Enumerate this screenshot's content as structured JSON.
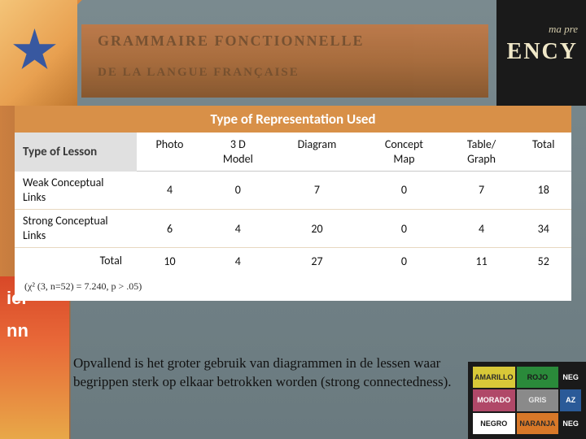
{
  "bg": {
    "topband_line1": "GRAMMAIRE FONCTIONNELLE",
    "topband_line2": "DE LA LANGUE FRANÇAISE",
    "right_small": "ma pre",
    "right_large": "ENCY",
    "ll_line1": "ier",
    "ll_line2": "nn",
    "colors": [
      {
        "label": "AMARILLO",
        "bg": "#d8c838",
        "fg": "#2a2a2a"
      },
      {
        "label": "ROJO",
        "bg": "#2a8a3a",
        "fg": "#1a1a1a"
      },
      {
        "label": "NEG",
        "bg": "#1a1a1a",
        "fg": "#ffffff"
      },
      {
        "label": "MORADO",
        "bg": "#b04868",
        "fg": "#ffffff"
      },
      {
        "label": "GRIS",
        "bg": "#8a8a8a",
        "fg": "#e8e8e8"
      },
      {
        "label": "AZ",
        "bg": "#2a5a98",
        "fg": "#ffffff"
      },
      {
        "label": "NEGRO",
        "bg": "#ffffff",
        "fg": "#1a1a1a"
      },
      {
        "label": "NARANJA",
        "bg": "#d87828",
        "fg": "#2a2a2a"
      },
      {
        "label": "NEG",
        "bg": "#1a1a1a",
        "fg": "#ffffff"
      }
    ]
  },
  "table": {
    "superheader": "Type of Representation Used",
    "rowheader": "Type of Lesson",
    "columns": [
      "Photo",
      "3 D\nModel",
      "Diagram",
      "Concept\nMap",
      "Table/\nGraph",
      "Total"
    ],
    "rows": [
      {
        "label": "Weak Conceptual Links",
        "cells": [
          4,
          0,
          7,
          0,
          7,
          18
        ]
      },
      {
        "label": "Strong Conceptual Links",
        "cells": [
          6,
          4,
          20,
          0,
          4,
          34
        ]
      }
    ],
    "total_label": "Total",
    "total_cells": [
      10,
      4,
      27,
      0,
      11,
      52
    ],
    "stat_note": "(χ² (3, n=52) = 7.240, p > .05)",
    "header_bg": "#d89048",
    "header_fg": "#ffffff",
    "rowheader_bg": "#e0e0e0"
  },
  "caption": "Opvallend is het groter gebruik van diagrammen in de lessen waar begrippen sterk op elkaar betrokken worden (strong connectedness)."
}
